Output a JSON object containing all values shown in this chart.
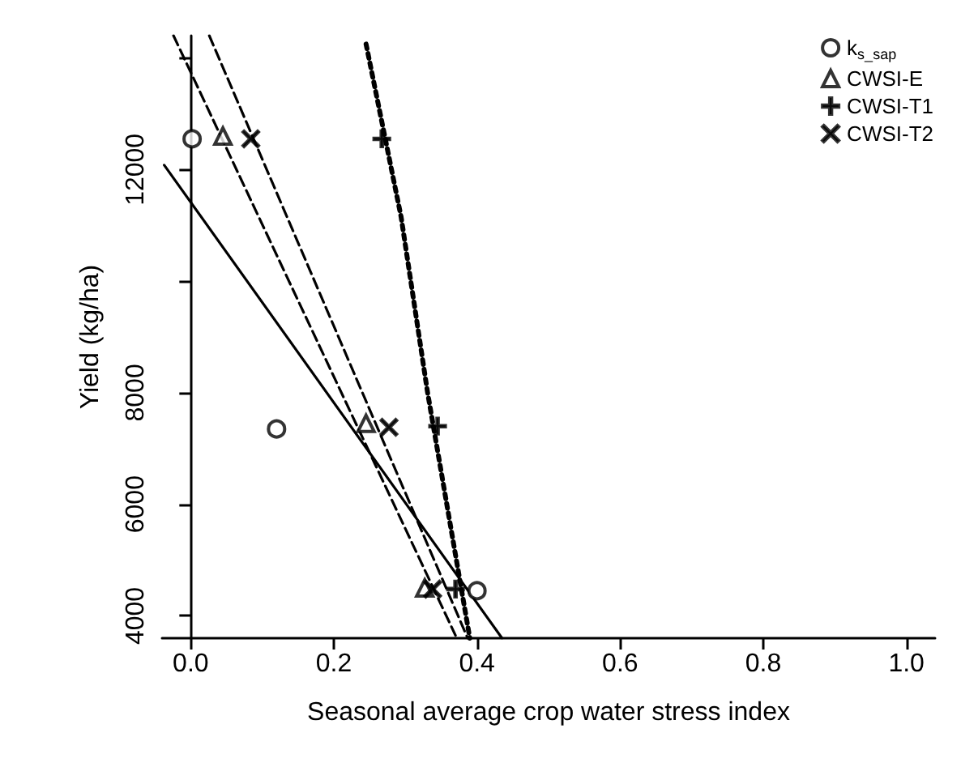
{
  "chart_data": {
    "type": "scatter",
    "xlabel": "Seasonal average crop water stress index",
    "ylabel": "Yield (kg/ha)",
    "xlim": [
      -0.04,
      1.04
    ],
    "ylim": [
      3600,
      14400
    ],
    "xticks": [
      {
        "value": 0,
        "label": "0.0"
      },
      0.2,
      0.4,
      0.6,
      0.8,
      {
        "value": 1,
        "label": "1.0"
      }
    ],
    "yticks": [
      4000,
      6000,
      8000,
      {
        "value": 10000,
        "label": null
      },
      12000,
      {
        "value": 14000,
        "label": null
      }
    ],
    "grid": false,
    "legend": "top right",
    "series": [
      {
        "name": "k$_{s_sap}$",
        "color": "#000000",
        "marker": "circle",
        "x": [
          0.002,
          0.12,
          0.4
        ],
        "values": [
          12550,
          7350,
          4450
        ]
      },
      {
        "name": "CWSI-E",
        "color": "#000000",
        "marker": "triangle",
        "x": [
          0.045,
          0.245,
          0.327
        ],
        "values": [
          12600,
          7450,
          4500
        ]
      },
      {
        "name": "CWSI-T1",
        "color": "#000000",
        "marker": "plus",
        "x": [
          0.267,
          0.345,
          0.37
        ],
        "values": [
          12550,
          7400,
          4480
        ]
      },
      {
        "name": "CWSI-T2",
        "color": "#000000",
        "marker": "cross",
        "x": [
          0.084,
          0.277,
          0.338
        ],
        "values": [
          12550,
          7380,
          4480
        ]
      },
      {
        "type": "line",
        "color": "#000000",
        "marker": "none",
        "line_style": "solid",
        "x": [
          -0.037,
          0.435
        ],
        "values": [
          12080,
          3600
        ]
      },
      {
        "type": "line",
        "color": "#000000",
        "marker": "none",
        "line_style": "dashed",
        "x": [
          -0.024,
          0.37
        ],
        "values": [
          14400,
          3650
        ]
      },
      {
        "type": "line",
        "color": "#000000",
        "marker": "none",
        "line_style": "dashed",
        "x": [
          0.026,
          0.387
        ],
        "values": [
          14400,
          3600
        ]
      },
      {
        "type": "line",
        "color": "#000000",
        "marker": "none",
        "line_style": "dotted",
        "x": [
          0.245,
          0.294,
          0.331,
          0.39
        ],
        "values": [
          14250,
          11150,
          8000,
          3600
        ]
      }
    ]
  }
}
